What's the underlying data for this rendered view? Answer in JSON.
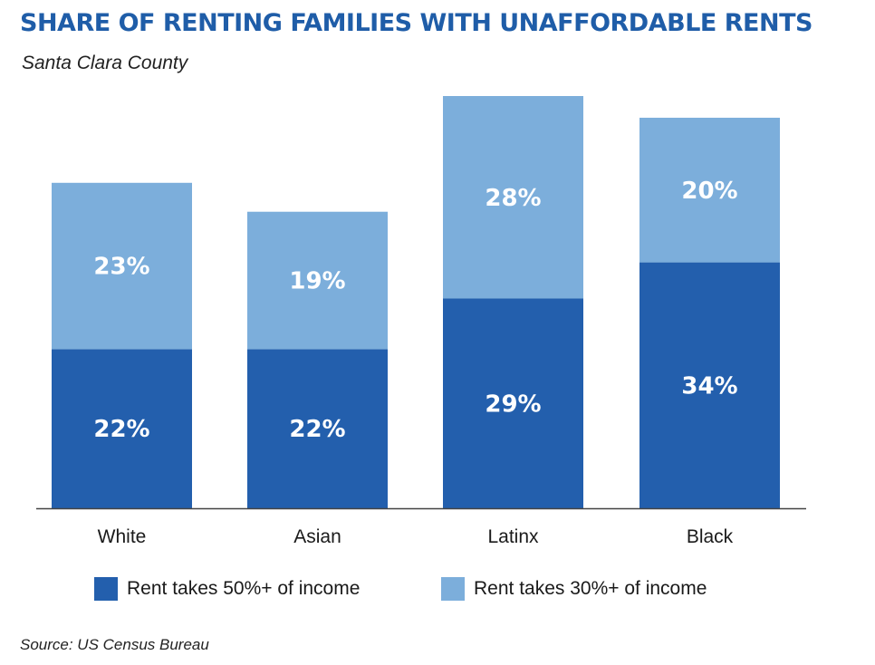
{
  "colors": {
    "title": "#1f5da8",
    "dark_blue": "#235fad",
    "light_blue": "#7caedb",
    "axis": "#444444"
  },
  "chart_data": {
    "type": "bar",
    "stacked": true,
    "title": "SHARE OF RENTING FAMILIES WITH UNAFFORDABLE RENTS",
    "subtitle": "Santa Clara County",
    "categories": [
      "White",
      "Asian",
      "Latinx",
      "Black"
    ],
    "series": [
      {
        "name": "Rent takes 50%+ of income",
        "values": [
          22,
          22,
          29,
          34
        ],
        "labels": [
          "22%",
          "22%",
          "29%",
          "34%"
        ],
        "color": "#235fad"
      },
      {
        "name": "Rent takes 30%+ of income",
        "values": [
          23,
          19,
          28,
          20
        ],
        "labels": [
          "23%",
          "19%",
          "28%",
          "20%"
        ],
        "color": "#7caedb"
      }
    ],
    "ylim": [
      0,
      57
    ],
    "grid": false,
    "legend_position": "bottom",
    "source": "Source: US Census Bureau"
  }
}
